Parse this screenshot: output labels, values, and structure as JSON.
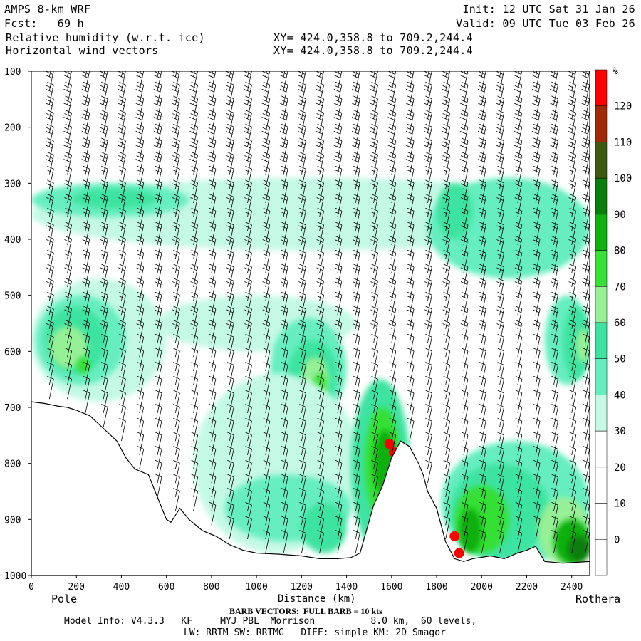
{
  "header": {
    "model": "AMPS 8-km WRF",
    "fcst": "Fcst:   69 h",
    "field1": "Relative humidity (w.r.t. ice)",
    "field2": "Horizontal wind vectors",
    "xy1": "XY= 424.0,358.8 to 709.2,244.4",
    "xy2": "XY= 424.0,358.8 to 709.2,244.4",
    "init": "Init: 12 UTC Sat 31 Jan 26",
    "valid": "Valid: 09 UTC Tue 03 Feb 26"
  },
  "footer": {
    "barb": "BARB VECTORS:  FULL BARB = 10 kts",
    "model_info": "Model Info: V4.3.3   KF     MYJ PBL  Morrison          8.0 km,  60 levels,",
    "model_info2": "LW: RRTM SW: RRTMG   DIFF: simple KM: 2D Smagor"
  },
  "chart_data": {
    "type": "heatmap",
    "title": "Relative humidity (w.r.t. ice)",
    "xlabel": "Distance (km)",
    "ylabel": "",
    "x_ticks": [
      0,
      200,
      400,
      600,
      800,
      1000,
      1200,
      1400,
      1600,
      1800,
      2000,
      2200,
      2400
    ],
    "y_ticks": [
      100,
      200,
      300,
      400,
      500,
      600,
      700,
      800,
      900,
      1000
    ],
    "xlim": [
      0,
      2480
    ],
    "ylim": [
      1000,
      100
    ],
    "left_endpoint": "Pole",
    "right_endpoint": "Rothera",
    "colorbar": {
      "unit": "%",
      "levels": [
        0,
        10,
        20,
        30,
        40,
        50,
        60,
        70,
        80,
        90,
        100,
        110,
        120
      ],
      "colors": [
        "#ffffff",
        "#ffffff",
        "#ffffff",
        "#ffffff",
        "#c4f9e6",
        "#66eec0",
        "#3ee3a0",
        "#96f096",
        "#36e036",
        "#10b010",
        "#0a7e0a",
        "#3e5a10",
        "#a02a08",
        "#ff0000"
      ]
    },
    "terrain_pressure": [
      [
        0,
        690
      ],
      [
        60,
        693
      ],
      [
        120,
        698
      ],
      [
        160,
        700
      ],
      [
        200,
        705
      ],
      [
        260,
        715
      ],
      [
        300,
        730
      ],
      [
        340,
        745
      ],
      [
        380,
        760
      ],
      [
        420,
        790
      ],
      [
        460,
        810
      ],
      [
        520,
        820
      ],
      [
        560,
        860
      ],
      [
        600,
        900
      ],
      [
        620,
        905
      ],
      [
        660,
        880
      ],
      [
        700,
        900
      ],
      [
        760,
        920
      ],
      [
        820,
        930
      ],
      [
        880,
        945
      ],
      [
        940,
        955
      ],
      [
        1000,
        960
      ],
      [
        1100,
        962
      ],
      [
        1200,
        965
      ],
      [
        1280,
        970
      ],
      [
        1360,
        970
      ],
      [
        1420,
        968
      ],
      [
        1460,
        960
      ],
      [
        1520,
        875
      ],
      [
        1560,
        840
      ],
      [
        1600,
        790
      ],
      [
        1640,
        760
      ],
      [
        1680,
        770
      ],
      [
        1720,
        800
      ],
      [
        1740,
        820
      ],
      [
        1760,
        850
      ],
      [
        1800,
        880
      ],
      [
        1840,
        940
      ],
      [
        1880,
        970
      ],
      [
        1920,
        975
      ],
      [
        1960,
        970
      ],
      [
        2040,
        965
      ],
      [
        2100,
        970
      ],
      [
        2160,
        960
      ],
      [
        2200,
        955
      ],
      [
        2240,
        948
      ],
      [
        2280,
        975
      ],
      [
        2360,
        978
      ],
      [
        2440,
        976
      ],
      [
        2480,
        975
      ]
    ],
    "barb_columns_km": [
      80,
      160,
      240,
      320,
      400,
      480,
      560,
      640,
      720,
      800,
      880,
      960,
      1040,
      1120,
      1200,
      1280,
      1360,
      1440,
      1520,
      1600,
      1680,
      1760,
      1840,
      1920,
      2000,
      2080,
      2160,
      2240,
      2320,
      2400,
      2460
    ]
  }
}
